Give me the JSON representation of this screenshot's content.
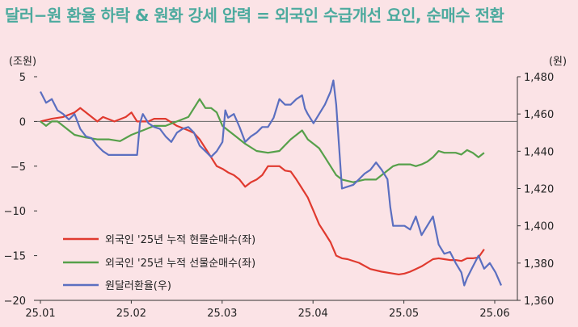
{
  "title": "달러−원 환율 하락 & 원화 강세 압력 = 외국인 수급개선 요인, 순매수 전환",
  "chart_data": {
    "type": "line",
    "x_ticks": [
      "25.01",
      "25.02",
      "25.03",
      "25.04",
      "25.05",
      "25.06"
    ],
    "y_left": {
      "unit": "(조원)",
      "range": [
        -20,
        5
      ],
      "ticks": [
        "5",
        "0",
        "−5",
        "−10",
        "−15",
        "−20"
      ]
    },
    "y_right": {
      "unit": "(원)",
      "range": [
        1360,
        1480
      ],
      "ticks": [
        "1,480",
        "1,460",
        "1,440",
        "1,420",
        "1,400",
        "1,380",
        "1,360"
      ]
    },
    "legend_position": "bottom-left",
    "series": [
      {
        "name": "외국인 '25년 누적 현물순매수(좌)",
        "axis": "left",
        "color": "#e03a2f",
        "points": [
          [
            0,
            0
          ],
          [
            2,
            0.3
          ],
          [
            4,
            0.5
          ],
          [
            6,
            1
          ],
          [
            7,
            1.5
          ],
          [
            8,
            1
          ],
          [
            10,
            0
          ],
          [
            11,
            0.5
          ],
          [
            13,
            0
          ],
          [
            15,
            0.5
          ],
          [
            16,
            1
          ],
          [
            17,
            0
          ],
          [
            19,
            0
          ],
          [
            20,
            0.3
          ],
          [
            22,
            0.3
          ],
          [
            24,
            -0.5
          ],
          [
            26,
            -1
          ],
          [
            27,
            -1.3
          ],
          [
            28,
            -2
          ],
          [
            29,
            -3
          ],
          [
            30,
            -4
          ],
          [
            31,
            -5
          ],
          [
            32,
            -5.3
          ],
          [
            33,
            -5.7
          ],
          [
            34,
            -6
          ],
          [
            35,
            -6.5
          ],
          [
            36,
            -7.3
          ],
          [
            37,
            -6.8
          ],
          [
            38,
            -6.5
          ],
          [
            39,
            -6
          ],
          [
            40,
            -5
          ],
          [
            41,
            -5
          ],
          [
            42,
            -5
          ],
          [
            43,
            -5.5
          ],
          [
            44,
            -5.6
          ],
          [
            45,
            -6.5
          ],
          [
            46,
            -7.5
          ],
          [
            47,
            -8.5
          ],
          [
            48,
            -10
          ],
          [
            49,
            -11.5
          ],
          [
            50,
            -12.5
          ],
          [
            51,
            -13.5
          ],
          [
            52,
            -15
          ],
          [
            53,
            -15.3
          ],
          [
            54,
            -15.4
          ],
          [
            56,
            -15.8
          ],
          [
            58,
            -16.5
          ],
          [
            60,
            -16.8
          ],
          [
            62,
            -17
          ],
          [
            63,
            -17.1
          ],
          [
            64,
            -17
          ],
          [
            65,
            -16.8
          ],
          [
            66,
            -16.5
          ],
          [
            67,
            -16.2
          ],
          [
            68,
            -15.8
          ],
          [
            69,
            -15.4
          ],
          [
            70,
            -15.3
          ],
          [
            71,
            -15.4
          ],
          [
            72,
            -15.5
          ],
          [
            73,
            -15.5
          ],
          [
            74,
            -15.6
          ],
          [
            75,
            -15.3
          ],
          [
            76,
            -15.3
          ],
          [
            77,
            -15.2
          ],
          [
            78,
            -14.3
          ]
        ]
      },
      {
        "name": "외국인 '25년 누적 선물순매수(좌)",
        "axis": "left",
        "color": "#56a04a",
        "points": [
          [
            0,
            0
          ],
          [
            1,
            -0.5
          ],
          [
            2,
            0
          ],
          [
            3,
            0
          ],
          [
            4,
            -0.5
          ],
          [
            5,
            -1
          ],
          [
            6,
            -1.5
          ],
          [
            8,
            -1.8
          ],
          [
            10,
            -2
          ],
          [
            12,
            -2
          ],
          [
            14,
            -2.2
          ],
          [
            16,
            -1.5
          ],
          [
            18,
            -1
          ],
          [
            20,
            -0.5
          ],
          [
            22,
            -0.5
          ],
          [
            24,
            0
          ],
          [
            26,
            0.5
          ],
          [
            28,
            2.5
          ],
          [
            29,
            1.5
          ],
          [
            30,
            1.5
          ],
          [
            31,
            1
          ],
          [
            32,
            -0.5
          ],
          [
            33,
            -1
          ],
          [
            34,
            -1.5
          ],
          [
            36,
            -2.5
          ],
          [
            38,
            -3.3
          ],
          [
            40,
            -3.5
          ],
          [
            42,
            -3.3
          ],
          [
            44,
            -2
          ],
          [
            46,
            -1
          ],
          [
            47,
            -2
          ],
          [
            48,
            -2.5
          ],
          [
            49,
            -3
          ],
          [
            50,
            -4
          ],
          [
            51,
            -5
          ],
          [
            52,
            -6
          ],
          [
            53,
            -6.5
          ],
          [
            55,
            -6.8
          ],
          [
            57,
            -6.5
          ],
          [
            59,
            -6.5
          ],
          [
            61,
            -5.5
          ],
          [
            62,
            -5
          ],
          [
            63,
            -4.8
          ],
          [
            65,
            -4.8
          ],
          [
            66,
            -5
          ],
          [
            67,
            -4.8
          ],
          [
            68,
            -4.5
          ],
          [
            69,
            -4
          ],
          [
            70,
            -3.3
          ],
          [
            71,
            -3.5
          ],
          [
            72,
            -3.5
          ],
          [
            73,
            -3.5
          ],
          [
            74,
            -3.7
          ],
          [
            75,
            -3.2
          ],
          [
            76,
            -3.5
          ],
          [
            77,
            -4
          ],
          [
            78,
            -3.5
          ]
        ]
      },
      {
        "name": "원달러환율(우)",
        "axis": "right",
        "color": "#5b6fc0",
        "points": [
          [
            0,
            1472
          ],
          [
            1,
            1466
          ],
          [
            2,
            1468
          ],
          [
            3,
            1462
          ],
          [
            4,
            1460
          ],
          [
            5,
            1457
          ],
          [
            6,
            1460
          ],
          [
            7,
            1452
          ],
          [
            8,
            1448
          ],
          [
            9,
            1447
          ],
          [
            10,
            1443
          ],
          [
            11,
            1440
          ],
          [
            12,
            1438
          ],
          [
            13,
            1438
          ],
          [
            14,
            1438
          ],
          [
            15,
            1438
          ],
          [
            16,
            1438
          ],
          [
            17,
            1438
          ],
          [
            17.5,
            1455
          ],
          [
            18,
            1460
          ],
          [
            19,
            1455
          ],
          [
            20,
            1453
          ],
          [
            21,
            1452
          ],
          [
            22,
            1448
          ],
          [
            23,
            1445
          ],
          [
            24,
            1450
          ],
          [
            25,
            1452
          ],
          [
            26,
            1453
          ],
          [
            27,
            1450
          ],
          [
            28,
            1443
          ],
          [
            29,
            1440
          ],
          [
            30,
            1437
          ],
          [
            31,
            1440
          ],
          [
            32,
            1445
          ],
          [
            32.5,
            1462
          ],
          [
            33,
            1458
          ],
          [
            34,
            1460
          ],
          [
            35,
            1453
          ],
          [
            36,
            1445
          ],
          [
            37,
            1448
          ],
          [
            38,
            1450
          ],
          [
            39,
            1453
          ],
          [
            40,
            1453
          ],
          [
            41,
            1458
          ],
          [
            42,
            1468
          ],
          [
            43,
            1465
          ],
          [
            44,
            1465
          ],
          [
            45,
            1468
          ],
          [
            46,
            1470
          ],
          [
            46.5,
            1463
          ],
          [
            47,
            1460
          ],
          [
            48,
            1455
          ],
          [
            49,
            1460
          ],
          [
            50,
            1465
          ],
          [
            51,
            1472
          ],
          [
            51.5,
            1478
          ],
          [
            52,
            1465
          ],
          [
            53,
            1420
          ],
          [
            54,
            1421
          ],
          [
            55,
            1422
          ],
          [
            56,
            1425
          ],
          [
            57,
            1428
          ],
          [
            58,
            1430
          ],
          [
            59,
            1434
          ],
          [
            60,
            1430
          ],
          [
            61,
            1425
          ],
          [
            61.5,
            1410
          ],
          [
            62,
            1400
          ],
          [
            63,
            1400
          ],
          [
            64,
            1400
          ],
          [
            65,
            1398
          ],
          [
            66,
            1405
          ],
          [
            67,
            1395
          ],
          [
            68,
            1400
          ],
          [
            69,
            1405
          ],
          [
            70,
            1390
          ],
          [
            71,
            1385
          ],
          [
            72,
            1386
          ],
          [
            73,
            1380
          ],
          [
            74,
            1375
          ],
          [
            74.5,
            1368
          ],
          [
            75,
            1372
          ],
          [
            76,
            1378
          ],
          [
            77,
            1384
          ],
          [
            78,
            1377
          ],
          [
            79,
            1380
          ],
          [
            80,
            1375
          ],
          [
            81,
            1368
          ]
        ]
      }
    ]
  }
}
